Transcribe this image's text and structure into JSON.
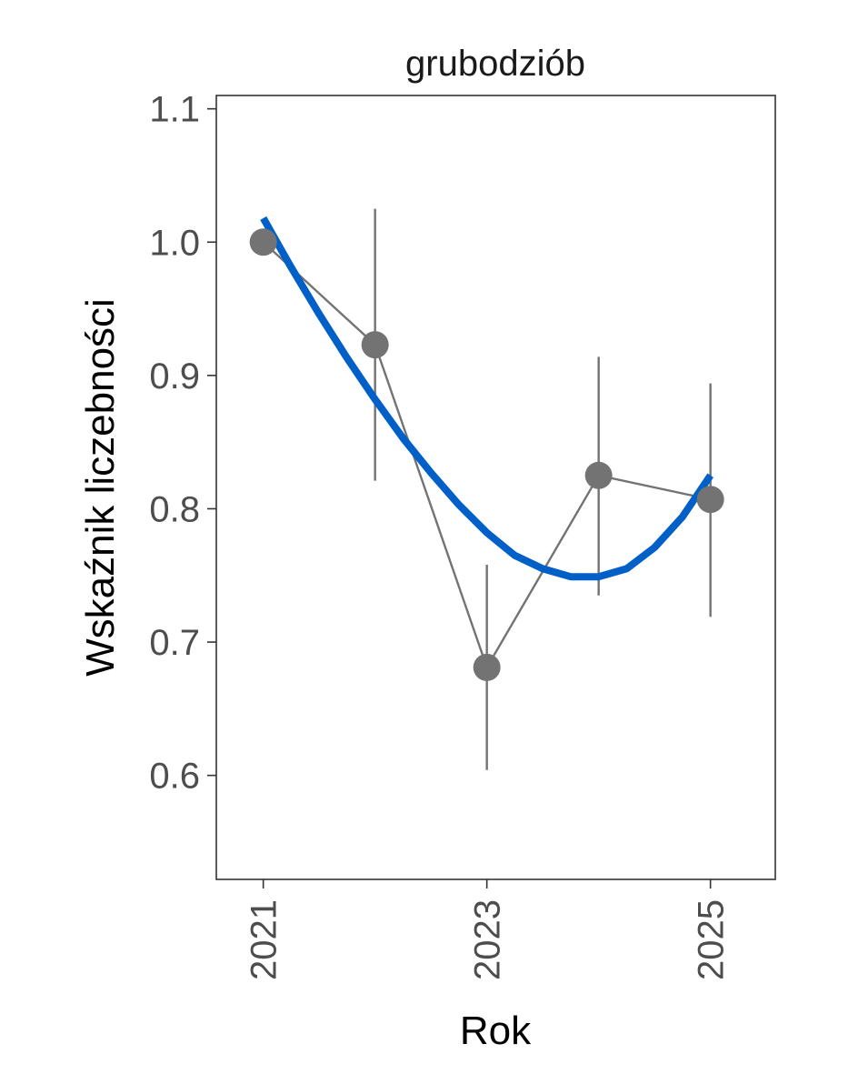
{
  "chart_data": {
    "type": "line",
    "title": "grubodziób",
    "xlabel": "Rok",
    "ylabel": "Wskaźnik liczebności",
    "xlim": [
      2020.58,
      2025.58
    ],
    "ylim": [
      0.522,
      1.11
    ],
    "x_ticks": [
      2021,
      2023,
      2025
    ],
    "y_ticks": [
      0.6,
      0.7,
      0.8,
      0.9,
      1.0,
      1.1
    ],
    "y_tick_labels": [
      "0.6",
      "0.7",
      "0.8",
      "0.9",
      "1.0",
      "1.1"
    ],
    "grid": false,
    "legend": "none",
    "series": [
      {
        "type": "points_with_errorbars",
        "color": "#737373",
        "points": [
          {
            "x": 2021,
            "y": 1.0,
            "lower": null,
            "upper": null
          },
          {
            "x": 2022,
            "y": 0.923,
            "lower": 0.821,
            "upper": 1.025
          },
          {
            "x": 2023,
            "y": 0.681,
            "lower": 0.604,
            "upper": 0.758
          },
          {
            "x": 2024,
            "y": 0.825,
            "lower": 0.735,
            "upper": 0.914
          },
          {
            "x": 2025,
            "y": 0.807,
            "lower": 0.719,
            "upper": 0.894
          }
        ]
      },
      {
        "type": "trend_curve",
        "color": "#0060c8",
        "x": [
          2021.0,
          2021.25,
          2021.5,
          2021.75,
          2022.0,
          2022.25,
          2022.5,
          2022.75,
          2023.0,
          2023.25,
          2023.5,
          2023.75,
          2024.0,
          2024.25,
          2024.5,
          2024.75,
          2025.0
        ],
        "y": [
          1.018,
          0.981,
          0.946,
          0.913,
          0.882,
          0.853,
          0.827,
          0.803,
          0.782,
          0.765,
          0.755,
          0.749,
          0.749,
          0.755,
          0.771,
          0.794,
          0.825
        ]
      }
    ]
  }
}
